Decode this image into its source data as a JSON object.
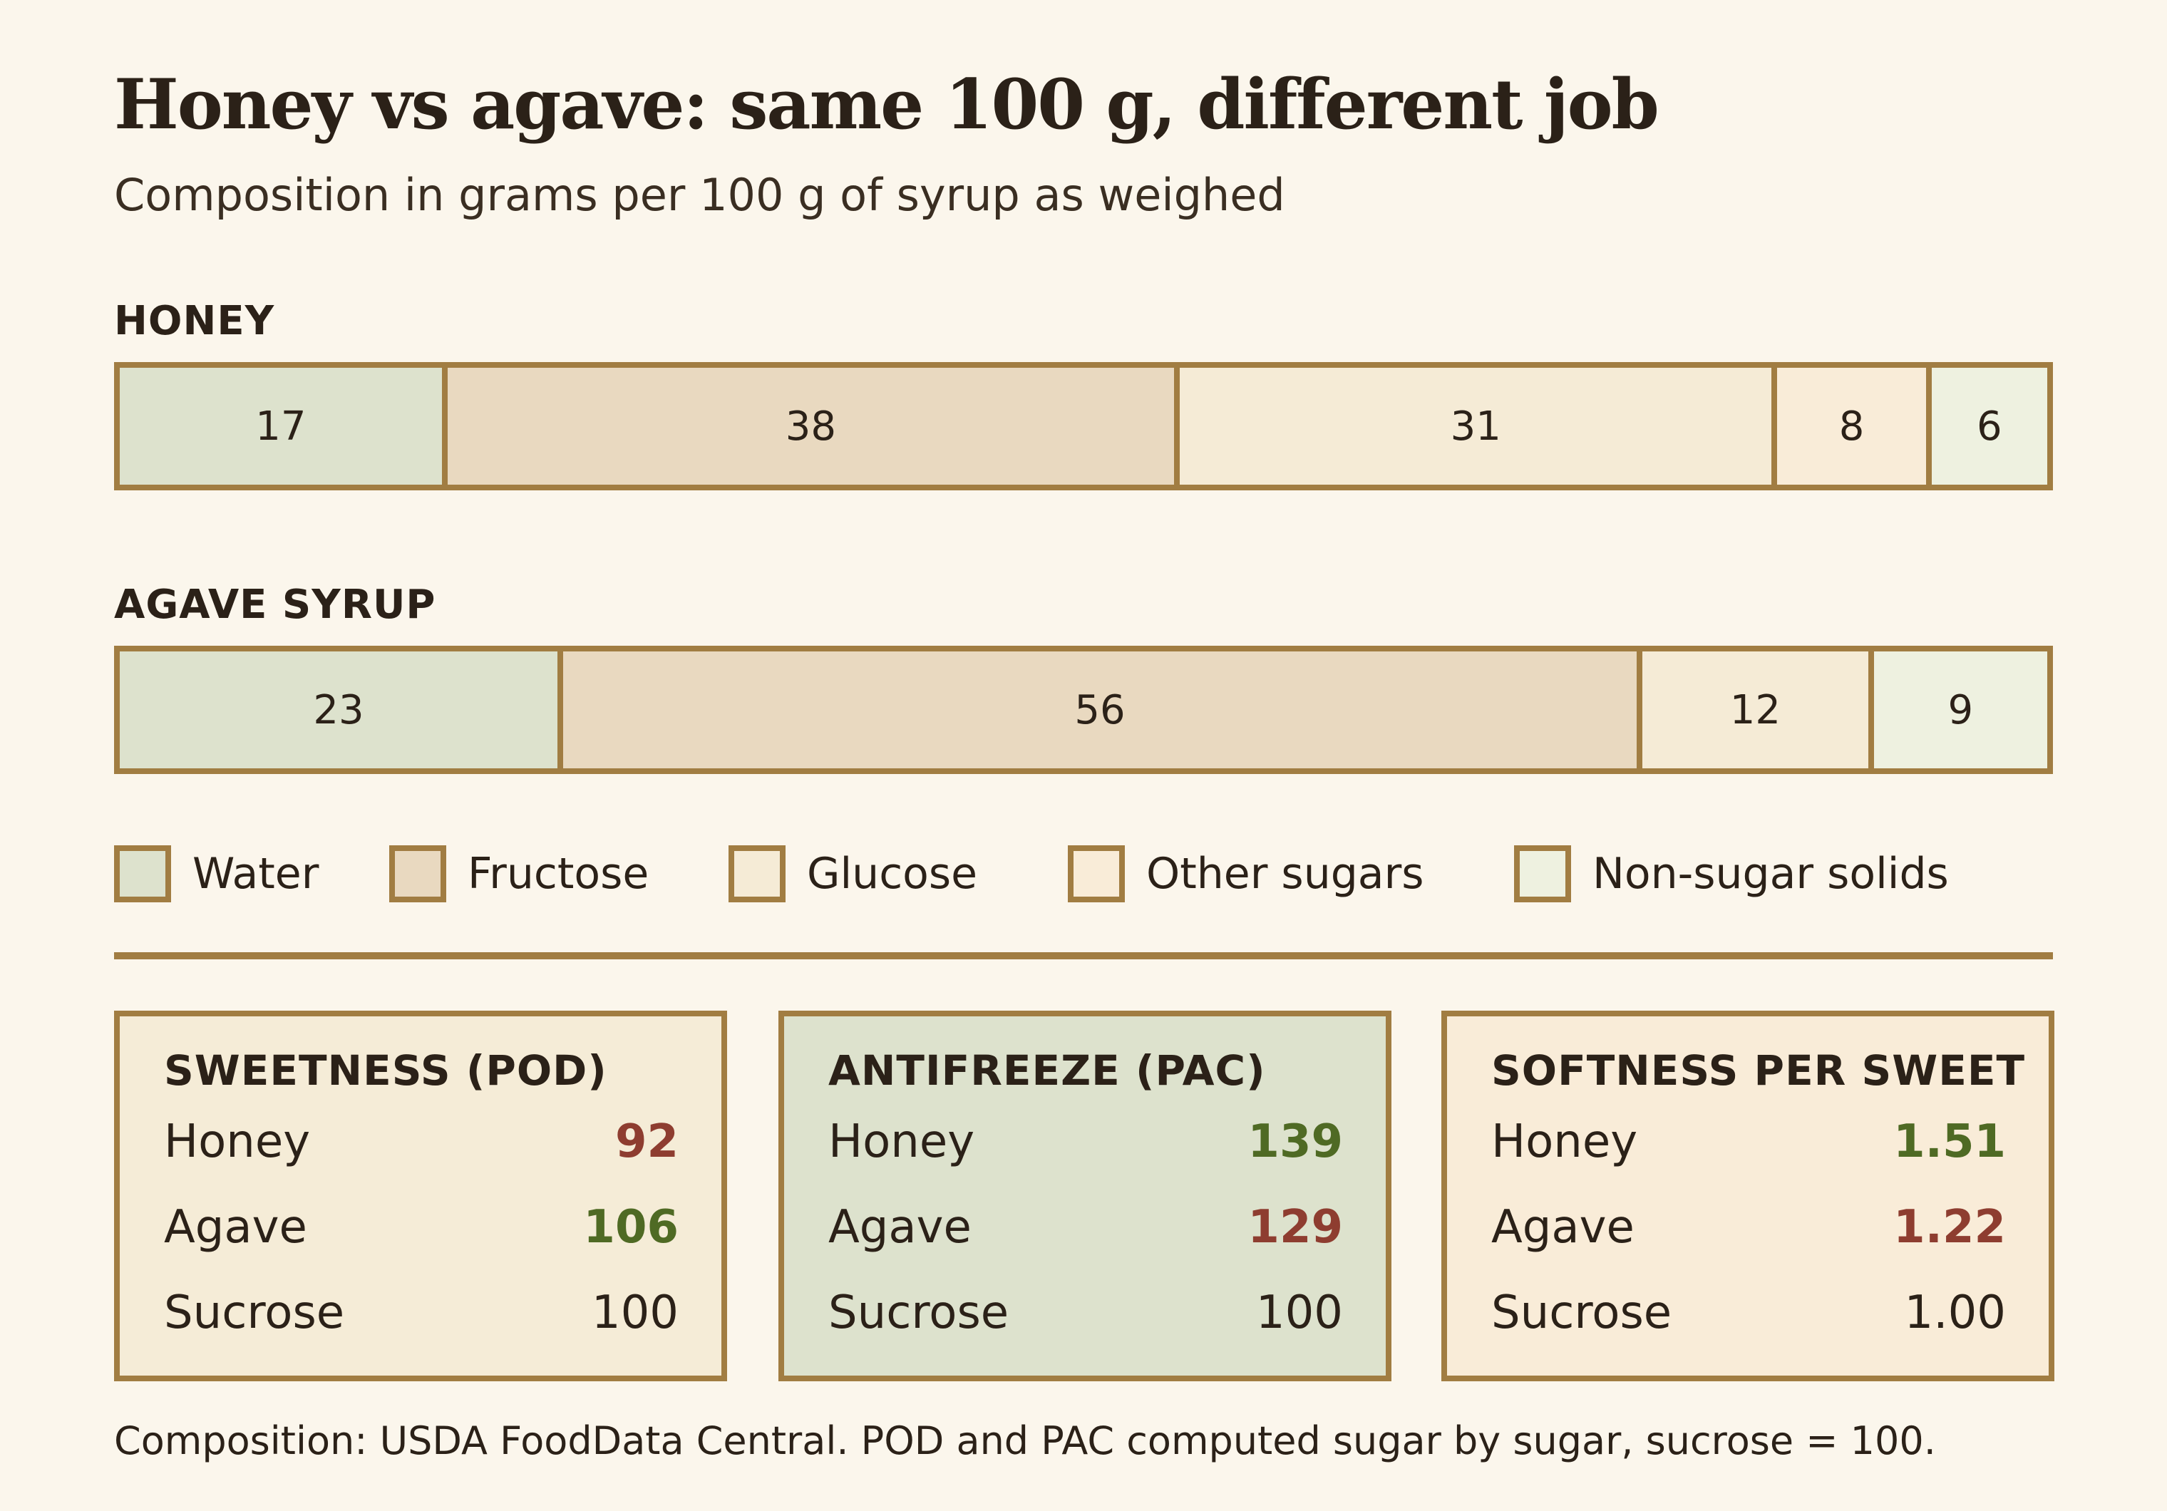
{
  "header": {
    "title": "Honey vs agave: same 100 g, different job",
    "subtitle": "Composition in grams per 100 g of syrup as weighed"
  },
  "chart_data": {
    "type": "bar",
    "stacked": true,
    "orientation": "horizontal",
    "unit": "g per 100 g",
    "xlim": [
      0,
      100
    ],
    "categories": [
      "HONEY",
      "AGAVE SYRUP"
    ],
    "series": [
      {
        "name": "Water",
        "values": [
          17,
          23
        ],
        "color": "#dde2cd"
      },
      {
        "name": "Fructose",
        "values": [
          38,
          56
        ],
        "color": "#e9d9c0"
      },
      {
        "name": "Glucose",
        "values": [
          31,
          12
        ],
        "color": "#f5ebd6"
      },
      {
        "name": "Other sugars",
        "values": [
          8,
          0
        ],
        "color": "#f9ecd8"
      },
      {
        "name": "Non-sugar solids",
        "values": [
          6,
          9
        ],
        "color": "#eef1e0"
      }
    ]
  },
  "panels": [
    {
      "title": "SWEETNESS (POD)",
      "bg": "#f5ecd7",
      "rows": [
        {
          "name": "Honey",
          "value": "92",
          "status": "bad"
        },
        {
          "name": "Agave",
          "value": "106",
          "status": "good"
        },
        {
          "name": "Sucrose",
          "value": "100",
          "status": "neutral"
        }
      ]
    },
    {
      "title": "ANTIFREEZE (PAC)",
      "bg": "#dde2cd",
      "rows": [
        {
          "name": "Honey",
          "value": "139",
          "status": "good"
        },
        {
          "name": "Agave",
          "value": "129",
          "status": "bad"
        },
        {
          "name": "Sucrose",
          "value": "100",
          "status": "neutral"
        }
      ]
    },
    {
      "title": "SOFTNESS PER SWEET",
      "bg": "#f9ecd8",
      "rows": [
        {
          "name": "Honey",
          "value": "1.51",
          "status": "good"
        },
        {
          "name": "Agave",
          "value": "1.22",
          "status": "bad"
        },
        {
          "name": "Sucrose",
          "value": "1.00",
          "status": "neutral"
        }
      ]
    }
  ],
  "footnote": "Composition: USDA FoodData Central. POD and PAC computed sugar by sugar, sucrose = 100.",
  "colors": {
    "border": "#a17d42",
    "background": "#fbf6ec",
    "good": "#4f6a24",
    "bad": "#8e3d30"
  }
}
